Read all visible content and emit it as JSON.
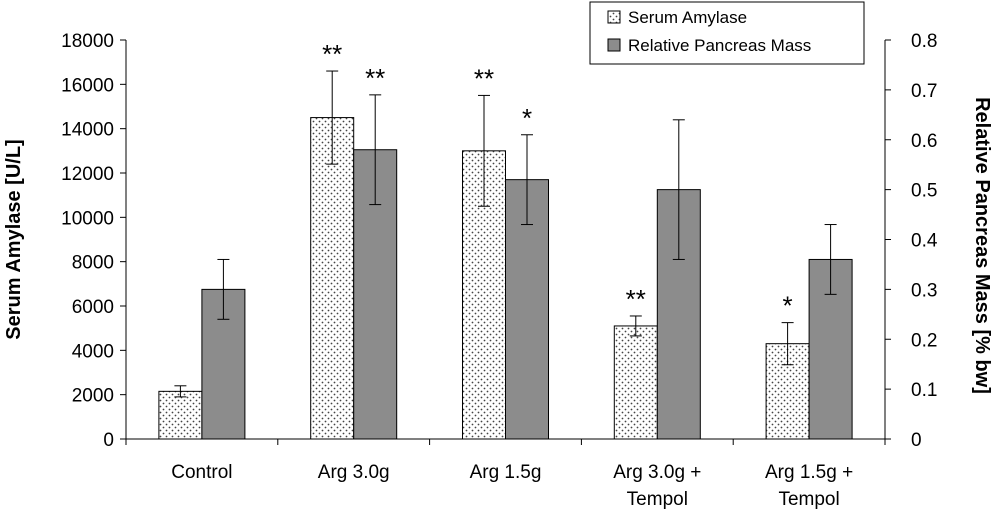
{
  "chart_data": {
    "type": "bar",
    "categories": [
      [
        "Control"
      ],
      [
        "Arg 3.0g"
      ],
      [
        "Arg 1.5g"
      ],
      [
        "Arg 3.0g +",
        "Tempol"
      ],
      [
        "Arg 1.5g +",
        "Tempol"
      ]
    ],
    "series": [
      {
        "name": "Serum Amylase",
        "axis": "left",
        "pattern": "dots",
        "values": [
          2150,
          14500,
          13000,
          5100,
          4300
        ],
        "errors": [
          250,
          2100,
          2500,
          450,
          950
        ],
        "significance": [
          "",
          "**",
          "**",
          "**",
          "*"
        ]
      },
      {
        "name": "Relative Pancreas Mass",
        "axis": "right",
        "pattern": "dark",
        "values": [
          0.3,
          0.58,
          0.52,
          0.5,
          0.36
        ],
        "errors": [
          0.06,
          0.11,
          0.09,
          0.14,
          0.07
        ],
        "significance": [
          "",
          "**",
          "*",
          "",
          ""
        ]
      }
    ],
    "y_left": {
      "label": "Serum Amylase [U/L]",
      "lim": [
        0,
        18000
      ],
      "ticks": [
        "0",
        "2000",
        "4000",
        "6000",
        "8000",
        "10000",
        "12000",
        "14000",
        "16000",
        "18000"
      ]
    },
    "y_right": {
      "label": "Relative Pancreas Mass [% bw]",
      "lim": [
        0,
        0.8
      ],
      "ticks": [
        "0",
        "0.1",
        "0.2",
        "0.3",
        "0.4",
        "0.5",
        "0.6",
        "0.7",
        "0.8"
      ]
    },
    "legend": {
      "position": "top-right",
      "entries": [
        "Serum Amylase",
        "Relative Pancreas Mass"
      ]
    },
    "grid": false,
    "colors": {
      "dark_fill": "#8c8c8c",
      "dots_fill": "#ffffff",
      "dot_color": "#444444",
      "stroke": "#000000"
    }
  }
}
